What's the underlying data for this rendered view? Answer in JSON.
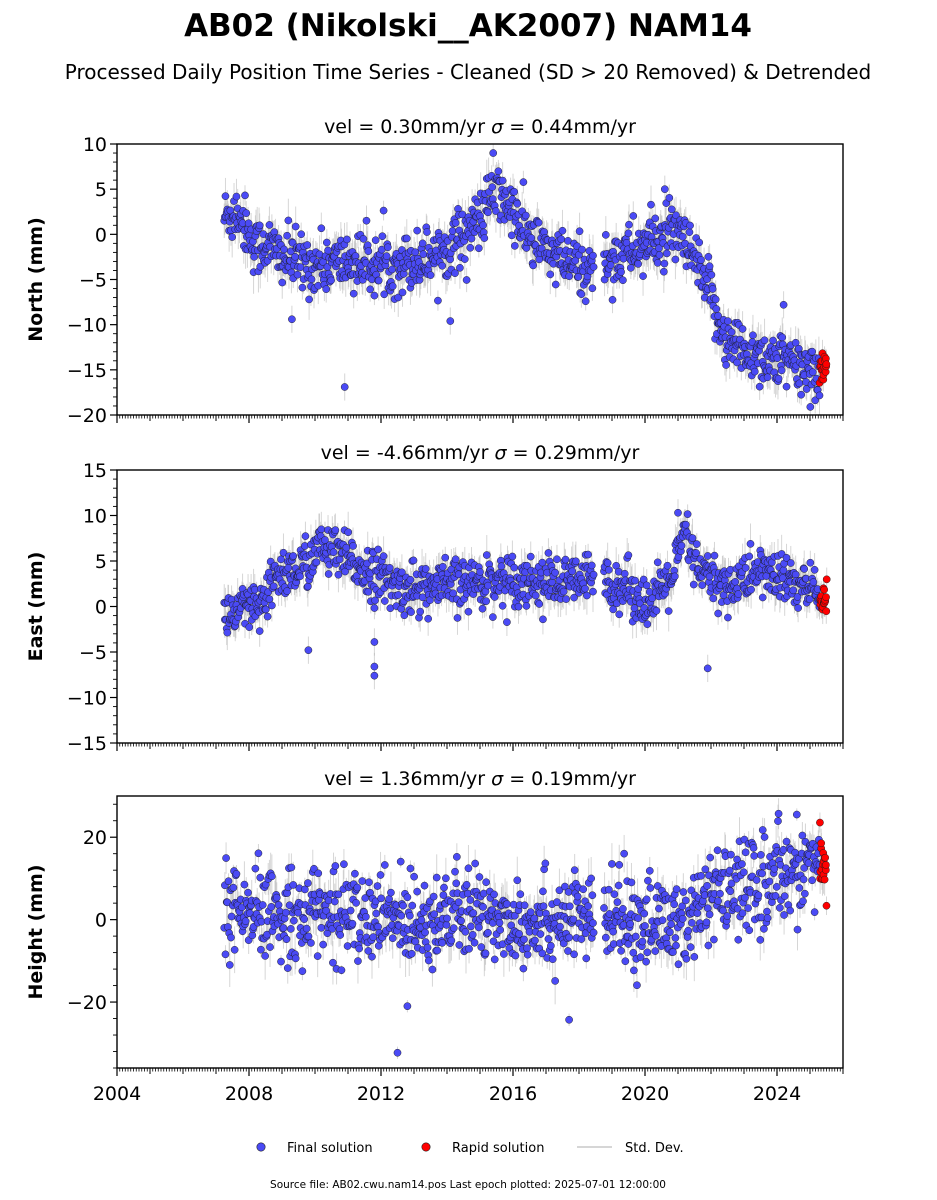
{
  "figure": {
    "title": "AB02 (Nikolski__AK2007) NAM14",
    "subtitle": "Processed Daily Position Time Series - Cleaned (SD > 20 Removed) & Detrended",
    "footer": "Source file: AB02.cwu.nam14.pos  Last epoch plotted: 2025-07-01 12:00:00",
    "legend": {
      "placement": "bottom-center",
      "items": [
        {
          "label": "Final solution",
          "color": "#4a4af5",
          "kind": "marker"
        },
        {
          "label": "Rapid solution",
          "color": "#ff0000",
          "kind": "marker"
        },
        {
          "label": "Std. Dev.",
          "color": "#c8c8c8",
          "kind": "line"
        }
      ]
    }
  },
  "chart_data": [
    {
      "type": "scatter",
      "title": "vel = 0.30mm/yr   σ = 0.44mm/yr",
      "title_vel": "vel = 0.30mm/yr",
      "title_sigma": "= 0.44mm/yr",
      "ylabel": "North (mm)",
      "xlim": [
        2004,
        2026
      ],
      "ylim": [
        -20,
        10
      ],
      "yticks": [
        -20,
        -15,
        -10,
        -5,
        0,
        5,
        10
      ],
      "xticks": [
        2004,
        2008,
        2012,
        2016,
        2020,
        2024
      ],
      "show_xticklabels": false,
      "data_span": [
        2007.25,
        2025.5
      ],
      "data_gap": [
        2018.45,
        2018.75
      ],
      "rapid_start": 2025.3,
      "colors": {
        "final": "#4a4af5",
        "rapid": "#ff0000",
        "std": "#b4b4b4"
      },
      "series": [
        {
          "name": "Final solution",
          "trend": [
            [
              2007.3,
              2.0
            ],
            [
              2007.7,
              2.5
            ],
            [
              2008.2,
              -1.5
            ],
            [
              2008.5,
              -1.0
            ],
            [
              2009.0,
              -2.5
            ],
            [
              2010.0,
              -3.5
            ],
            [
              2011.0,
              -3.0
            ],
            [
              2012.0,
              -3.5
            ],
            [
              2013.0,
              -3.0
            ],
            [
              2014.0,
              -1.5
            ],
            [
              2015.0,
              1.5
            ],
            [
              2015.4,
              4.5
            ],
            [
              2015.7,
              4.0
            ],
            [
              2016.5,
              -0.5
            ],
            [
              2017.5,
              -3.0
            ],
            [
              2018.4,
              -4.0
            ],
            [
              2018.8,
              -3.0
            ],
            [
              2019.5,
              -2.0
            ],
            [
              2020.5,
              -0.5
            ],
            [
              2021.0,
              0.0
            ],
            [
              2021.5,
              -3.0
            ],
            [
              2022.0,
              -7.0
            ],
            [
              2022.5,
              -12.0
            ],
            [
              2023.5,
              -13.5
            ],
            [
              2024.5,
              -14.5
            ],
            [
              2025.3,
              -15.5
            ]
          ],
          "scatter_sd": 1.6,
          "outliers": [
            [
              2009.3,
              -9.4
            ],
            [
              2010.9,
              -16.9
            ],
            [
              2014.1,
              -9.6
            ],
            [
              2024.2,
              -7.8
            ],
            [
              2015.4,
              9.0
            ],
            [
              2020.6,
              5.0
            ]
          ]
        },
        {
          "name": "Rapid solution",
          "trend": [
            [
              2025.3,
              -15.0
            ],
            [
              2025.5,
              -15.0
            ]
          ],
          "scatter_sd": 1.0,
          "outliers": []
        }
      ]
    },
    {
      "type": "scatter",
      "title": "vel = -4.66mm/yr   σ = 0.29mm/yr",
      "title_vel": "vel = -4.66mm/yr",
      "title_sigma": "= 0.29mm/yr",
      "ylabel": "East (mm)",
      "xlim": [
        2004,
        2026
      ],
      "ylim": [
        -15,
        15
      ],
      "yticks": [
        -15,
        -10,
        -5,
        0,
        5,
        10,
        15
      ],
      "xticks": [
        2004,
        2008,
        2012,
        2016,
        2020,
        2024
      ],
      "show_xticklabels": false,
      "data_span": [
        2007.25,
        2025.5
      ],
      "data_gap": [
        2018.45,
        2018.75
      ],
      "rapid_start": 2025.3,
      "colors": {
        "final": "#4a4af5",
        "rapid": "#ff0000",
        "std": "#b4b4b4"
      },
      "series": [
        {
          "name": "Final solution",
          "trend": [
            [
              2007.3,
              -1.0
            ],
            [
              2008.5,
              0.0
            ],
            [
              2008.8,
              3.5
            ],
            [
              2009.5,
              4.0
            ],
            [
              2010.2,
              6.5
            ],
            [
              2011.0,
              5.0
            ],
            [
              2011.8,
              3.5
            ],
            [
              2012.5,
              2.0
            ],
            [
              2013.5,
              2.0
            ],
            [
              2014.5,
              2.5
            ],
            [
              2016.0,
              3.0
            ],
            [
              2017.5,
              2.5
            ],
            [
              2018.4,
              3.0
            ],
            [
              2018.8,
              3.0
            ],
            [
              2019.5,
              2.0
            ],
            [
              2020.2,
              0.0
            ],
            [
              2020.9,
              4.0
            ],
            [
              2021.2,
              8.0
            ],
            [
              2021.6,
              4.0
            ],
            [
              2022.5,
              2.0
            ],
            [
              2023.5,
              4.0
            ],
            [
              2024.5,
              2.5
            ],
            [
              2025.3,
              1.5
            ]
          ],
          "scatter_sd": 1.4,
          "outliers": [
            [
              2009.8,
              -4.8
            ],
            [
              2011.8,
              -6.6
            ],
            [
              2011.8,
              -7.6
            ],
            [
              2011.8,
              -3.9
            ],
            [
              2021.0,
              10.3
            ],
            [
              2021.9,
              -6.8
            ]
          ]
        },
        {
          "name": "Rapid solution",
          "trend": [
            [
              2025.3,
              0.6
            ],
            [
              2025.5,
              0.6
            ]
          ],
          "scatter_sd": 1.1,
          "outliers": []
        }
      ]
    },
    {
      "type": "scatter",
      "title": "vel = 1.36mm/yr   σ = 0.19mm/yr",
      "title_vel": "vel = 1.36mm/yr",
      "title_sigma": "= 0.19mm/yr",
      "ylabel": "Height (mm)",
      "xlim": [
        2004,
        2026
      ],
      "ylim": [
        -36,
        30
      ],
      "yticks": [
        -20,
        0,
        20
      ],
      "xticks": [
        2004,
        2008,
        2012,
        2016,
        2020,
        2024
      ],
      "show_xticklabels": true,
      "data_span": [
        2007.25,
        2025.5
      ],
      "data_gap": [
        2018.45,
        2018.75
      ],
      "rapid_start": 2025.3,
      "colors": {
        "final": "#4a4af5",
        "rapid": "#ff0000",
        "std": "#b4b4b4"
      },
      "series": [
        {
          "name": "Final solution",
          "trend": [
            [
              2007.3,
              0.0
            ],
            [
              2010.0,
              2.0
            ],
            [
              2012.0,
              0.0
            ],
            [
              2014.0,
              1.0
            ],
            [
              2016.0,
              0.0
            ],
            [
              2018.4,
              0.0
            ],
            [
              2018.8,
              0.0
            ],
            [
              2020.5,
              -1.0
            ],
            [
              2021.5,
              0.0
            ],
            [
              2022.0,
              5.0
            ],
            [
              2023.0,
              8.0
            ],
            [
              2024.0,
              10.0
            ],
            [
              2024.8,
              14.0
            ],
            [
              2025.3,
              13.0
            ]
          ],
          "scatter_sd": 5.5,
          "outliers": [
            [
              2012.5,
              -32.3
            ],
            [
              2017.7,
              -24.3
            ],
            [
              2012.8,
              -21.0
            ],
            [
              2024.6,
              25.5
            ]
          ]
        },
        {
          "name": "Rapid solution",
          "trend": [
            [
              2025.3,
              11.0
            ],
            [
              2025.5,
              11.0
            ]
          ],
          "scatter_sd": 3.8,
          "outliers": []
        }
      ]
    }
  ]
}
